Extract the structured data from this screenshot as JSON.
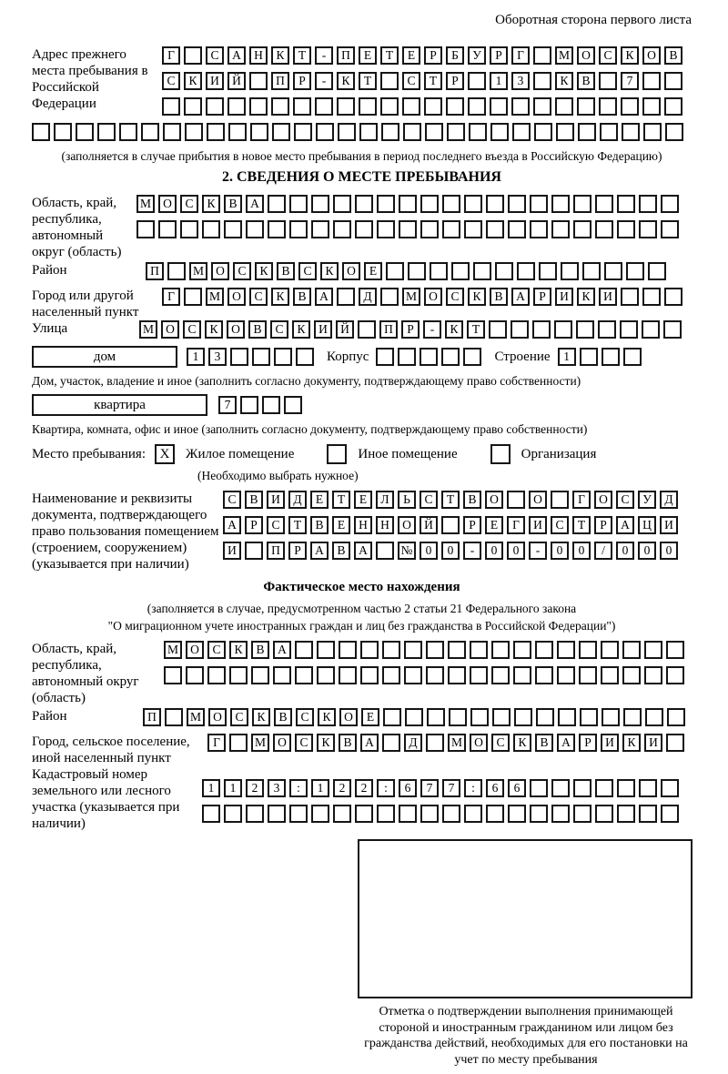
{
  "header": "Оборотная сторона первого листа",
  "prev_address": {
    "label": "Адрес прежнего места пребывания в Российской Федерации",
    "rows": [
      [
        "Г",
        "",
        "С",
        "А",
        "Н",
        "К",
        "Т",
        "-",
        "П",
        "Е",
        "Т",
        "Е",
        "Р",
        "Б",
        "У",
        "Р",
        "Г",
        "",
        "М",
        "О",
        "С",
        "К",
        "О",
        "В"
      ],
      [
        "С",
        "К",
        "И",
        "Й",
        "",
        "П",
        "Р",
        "-",
        "К",
        "Т",
        "",
        "С",
        "Т",
        "Р",
        "",
        "1",
        "3",
        "",
        "К",
        "В",
        "",
        "7",
        "",
        ""
      ],
      [
        "",
        "",
        "",
        "",
        "",
        "",
        "",
        "",
        "",
        "",
        "",
        "",
        "",
        "",
        "",
        "",
        "",
        "",
        "",
        "",
        "",
        "",
        "",
        ""
      ],
      [
        "",
        "",
        "",
        "",
        "",
        "",
        "",
        "",
        "",
        "",
        "",
        "",
        "",
        "",
        "",
        "",
        "",
        "",
        "",
        "",
        "",
        "",
        "",
        "",
        "",
        "",
        "",
        "",
        "",
        ""
      ]
    ],
    "caption": "(заполняется в случае прибытия в новое место пребывания в период последнего въезда в Российскую Федерацию)"
  },
  "section2": {
    "title": "2. СВЕДЕНИЯ О МЕСТЕ ПРЕБЫВАНИЯ",
    "oblast": {
      "label": "Область, край, республика, автономный округ (область)",
      "rows": [
        [
          "М",
          "О",
          "С",
          "К",
          "В",
          "А",
          "",
          "",
          "",
          "",
          "",
          "",
          "",
          "",
          "",
          "",
          "",
          "",
          "",
          "",
          "",
          "",
          "",
          "",
          ""
        ],
        [
          "",
          "",
          "",
          "",
          "",
          "",
          "",
          "",
          "",
          "",
          "",
          "",
          "",
          "",
          "",
          "",
          "",
          "",
          "",
          "",
          "",
          "",
          "",
          "",
          ""
        ]
      ]
    },
    "raion": {
      "label": "Район",
      "rows": [
        [
          "П",
          "",
          "М",
          "О",
          "С",
          "К",
          "В",
          "С",
          "К",
          "О",
          "Е",
          "",
          "",
          "",
          "",
          "",
          "",
          "",
          "",
          "",
          "",
          "",
          "",
          ""
        ]
      ]
    },
    "gorod": {
      "label": "Город или другой населенный пункт",
      "rows": [
        [
          "Г",
          "",
          "М",
          "О",
          "С",
          "К",
          "В",
          "А",
          "",
          "Д",
          "",
          "М",
          "О",
          "С",
          "К",
          "В",
          "А",
          "Р",
          "И",
          "К",
          "И",
          "",
          "",
          ""
        ]
      ]
    },
    "ulitsa": {
      "label": "Улица",
      "rows": [
        [
          "М",
          "О",
          "С",
          "К",
          "О",
          "В",
          "С",
          "К",
          "И",
          "Й",
          "",
          "П",
          "Р",
          "-",
          "К",
          "Т",
          "",
          "",
          "",
          "",
          "",
          "",
          "",
          "",
          ""
        ]
      ]
    },
    "dom": {
      "box_label": "дом",
      "cells": [
        "1",
        "3",
        "",
        "",
        "",
        ""
      ],
      "korpus_label": "Корпус",
      "korpus_cells": [
        "",
        "",
        "",
        "",
        ""
      ],
      "stroenie_label": "Строение",
      "stroenie_cells": [
        "1",
        "",
        "",
        ""
      ],
      "caption": "Дом, участок, владение и иное (заполнить согласно документу, подтверждающему право собственности)"
    },
    "kvartira": {
      "box_label": "квартира",
      "cells": [
        "7",
        "",
        "",
        ""
      ],
      "caption": "Квартира, комната, офис и иное (заполнить согласно документу, подтверждающему право собственности)"
    },
    "mesto": {
      "label": "Место пребывания:",
      "options": [
        {
          "mark": "X",
          "label": "Жилое помещение"
        },
        {
          "mark": "",
          "label": "Иное помещение"
        },
        {
          "mark": "",
          "label": "Организация"
        }
      ],
      "caption": "(Необходимо выбрать нужное)"
    },
    "doc": {
      "label": "Наименование и реквизиты документа, подтверждающего право пользования помещением (строением, сооружением) (указывается при наличии)",
      "rows": [
        [
          "С",
          "В",
          "И",
          "Д",
          "Е",
          "Т",
          "Е",
          "Л",
          "Ь",
          "С",
          "Т",
          "В",
          "О",
          "",
          "О",
          "",
          "Г",
          "О",
          "С",
          "У",
          "Д"
        ],
        [
          "А",
          "Р",
          "С",
          "Т",
          "В",
          "Е",
          "Н",
          "Н",
          "О",
          "Й",
          "",
          "Р",
          "Е",
          "Г",
          "И",
          "С",
          "Т",
          "Р",
          "А",
          "Ц",
          "И"
        ],
        [
          "И",
          "",
          "П",
          "Р",
          "А",
          "В",
          "А",
          "",
          "№",
          "0",
          "0",
          "-",
          "0",
          "0",
          "-",
          "0",
          "0",
          "/",
          "0",
          "0",
          "0"
        ]
      ]
    }
  },
  "fact": {
    "title": "Фактическое место нахождения",
    "caption1": "(заполняется в случае, предусмотренном частью 2 статьи 21 Федерального закона",
    "caption2": "\"О миграционном учете иностранных граждан и лиц без гражданства в Российской Федерации\")",
    "oblast": {
      "label": "Область, край, республика, автономный округ (область)",
      "rows": [
        [
          "М",
          "О",
          "С",
          "К",
          "В",
          "А",
          "",
          "",
          "",
          "",
          "",
          "",
          "",
          "",
          "",
          "",
          "",
          "",
          "",
          "",
          "",
          "",
          "",
          ""
        ],
        [
          "",
          "",
          "",
          "",
          "",
          "",
          "",
          "",
          "",
          "",
          "",
          "",
          "",
          "",
          "",
          "",
          "",
          "",
          "",
          "",
          "",
          "",
          "",
          ""
        ]
      ]
    },
    "raion": {
      "label": "Район",
      "rows": [
        [
          "П",
          "",
          "М",
          "О",
          "С",
          "К",
          "В",
          "С",
          "К",
          "О",
          "Е",
          "",
          "",
          "",
          "",
          "",
          "",
          "",
          "",
          "",
          "",
          "",
          "",
          "",
          ""
        ]
      ]
    },
    "gorod": {
      "label": "Город, сельское поселение, иной населенный пункт",
      "rows": [
        [
          "Г",
          "",
          "М",
          "О",
          "С",
          "К",
          "В",
          "А",
          "",
          "Д",
          "",
          "М",
          "О",
          "С",
          "К",
          "В",
          "А",
          "Р",
          "И",
          "К",
          "И",
          ""
        ]
      ]
    },
    "kadastr": {
      "label": "Кадастровый номер земельного или лесного участка (указывается при наличии)",
      "rows": [
        [
          "1",
          "1",
          "2",
          "3",
          ":",
          "1",
          "2",
          "2",
          ":",
          "6",
          "7",
          "7",
          ":",
          "6",
          "6",
          "",
          "",
          "",
          "",
          "",
          "",
          ""
        ],
        [
          "",
          "",
          "",
          "",
          "",
          "",
          "",
          "",
          "",
          "",
          "",
          "",
          "",
          "",
          "",
          "",
          "",
          "",
          "",
          "",
          "",
          ""
        ]
      ]
    },
    "stamp_caption": "Отметка о подтверждении выполнения принимающей стороной и иностранным гражданином или лицом без гражданства действий, необходимых для его постановки на учет по месту пребывания"
  }
}
